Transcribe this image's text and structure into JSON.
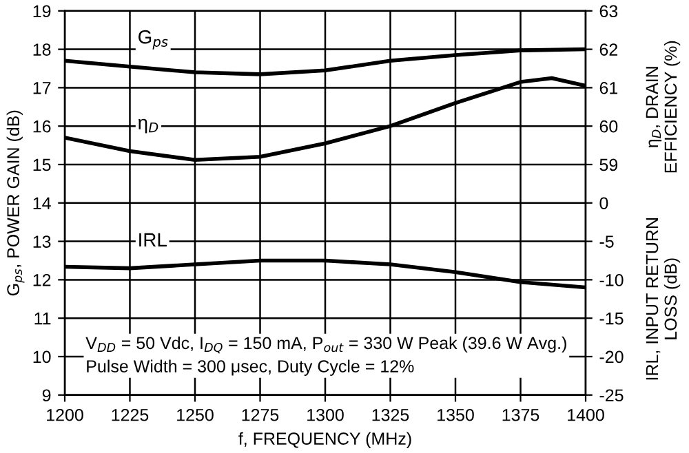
{
  "chart_data": {
    "type": "line",
    "xlabel": "f, FREQUENCY (MHz)",
    "ylabel": "G$_{ps}$, POWER GAIN (dB)",
    "y2label": "η$_{D}$, DRAIN\nEFFICIENCY (%)",
    "y3label": "IRL, INPUT RETURN\nLOSS (dB)",
    "x": [
      1200,
      1225,
      1250,
      1275,
      1300,
      1325,
      1350,
      1375,
      1400
    ],
    "xlim": [
      1200,
      1400
    ],
    "xticks": [
      1200,
      1225,
      1250,
      1275,
      1300,
      1325,
      1350,
      1375,
      1400
    ],
    "ylim": [
      9,
      19
    ],
    "yticks": [
      9,
      10,
      11,
      12,
      13,
      14,
      15,
      16,
      17,
      18,
      19
    ],
    "y2lim": [
      53,
      63
    ],
    "y2ticks": [
      59,
      60,
      61,
      62,
      63
    ],
    "y3lim": [
      -25,
      25
    ],
    "y3ticks": [
      -25,
      -20,
      -15,
      -10,
      -5,
      0
    ],
    "grid": true,
    "legend": false,
    "marker": "none",
    "line_style": "solid",
    "series": [
      {
        "name": "G$_{ps}$",
        "color": "#000000",
        "values": [
          17.7,
          17.55,
          17.4,
          17.35,
          17.45,
          17.7,
          17.85,
          17.97,
          18.0
        ]
      },
      {
        "name": "η$_{D}$",
        "color": "#000000",
        "axis": "y2",
        "x": [
          1200,
          1225,
          1250,
          1275,
          1300,
          1325,
          1350,
          1375,
          1387,
          1400
        ],
        "values": [
          59.7,
          59.35,
          59.12,
          59.2,
          59.55,
          60.0,
          60.6,
          61.15,
          61.25,
          61.05
        ]
      },
      {
        "name": "IRL",
        "color": "#000000",
        "axis": "y3",
        "values": [
          -8.3,
          -8.5,
          -8.0,
          -7.5,
          -7.5,
          -8.0,
          -9.0,
          -10.3,
          -11.0
        ]
      }
    ],
    "annotations": [
      "V$_{DD}$ = 50 Vdc, I$_{DQ}$ = 150 mA, P$_{out}$ = 330 W Peak (39.6 W Avg.)\nPulse Width = 300 μsec, Duty Cycle = 12%"
    ]
  }
}
